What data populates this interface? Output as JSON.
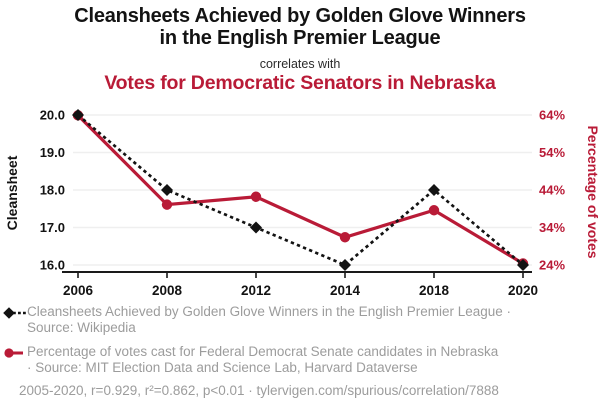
{
  "header": {
    "title_line1": "Cleansheets Achieved by Golden Glove Winners",
    "title_line2": "in the English Premier League",
    "connector": "correlates with",
    "subtitle": "Votes for Democratic Senators in Nebraska"
  },
  "chart_data": {
    "type": "line",
    "title": "Cleansheets Achieved by Golden Glove Winners in the English Premier League correlates with Votes for Democratic Senators in Nebraska",
    "x": [
      2006,
      2008,
      2012,
      2014,
      2018,
      2020
    ],
    "x_tick_labels": [
      "2006",
      "2008",
      "2012",
      "2014",
      "2018",
      "2020"
    ],
    "series": [
      {
        "name": "Cleansheets Achieved by Golden Glove Winners in the English Premier League",
        "axis": "left",
        "color": "#131313",
        "line_style": "dashed",
        "marker": "diamond",
        "values": [
          20,
          18,
          17,
          16,
          18,
          16
        ]
      },
      {
        "name": "Percentage of votes cast for Federal Democrat Senate candidates in Nebraska",
        "axis": "right",
        "color": "#b91b37",
        "line_style": "solid",
        "marker": "circle",
        "values": [
          63.9,
          40.1,
          42.2,
          31.4,
          38.6,
          24.4
        ]
      }
    ],
    "left_axis": {
      "label": "Cleansheet",
      "range": [
        16,
        20
      ],
      "ticks": [
        16,
        17,
        18,
        19,
        20
      ],
      "tick_labels": [
        "16.0",
        "17.0",
        "18.0",
        "19.0",
        "20.0"
      ]
    },
    "right_axis": {
      "label": "Percentage of votes",
      "range": [
        24,
        64
      ],
      "ticks": [
        24,
        34,
        44,
        54,
        64
      ],
      "tick_labels": [
        "24%",
        "34%",
        "44%",
        "54%",
        "64%"
      ]
    },
    "grid": true,
    "legend_position": "bottom"
  },
  "legend": [
    {
      "marker": "black-diamond-dashed",
      "lines": [
        "Cleansheets Achieved by Golden Glove Winners in the English Premier League ·",
        "Source: Wikipedia"
      ]
    },
    {
      "marker": "red-circle-solid",
      "lines": [
        "Percentage of votes cast for Federal Democrat Senate candidates in Nebraska",
        "· Source: MIT Election Data and Science Lab, Harvard Dataverse"
      ]
    }
  ],
  "footer": {
    "text": "2005-2020, r=0.929, r²=0.862, p<0.01 · tylervigen.com/spurious/correlation/7888"
  },
  "colors": {
    "accent_red": "#b91b37",
    "text_black": "#131313",
    "muted_gray": "#9c9c9c",
    "gridline": "#efefef",
    "axis_line": "#1a1a1a"
  }
}
